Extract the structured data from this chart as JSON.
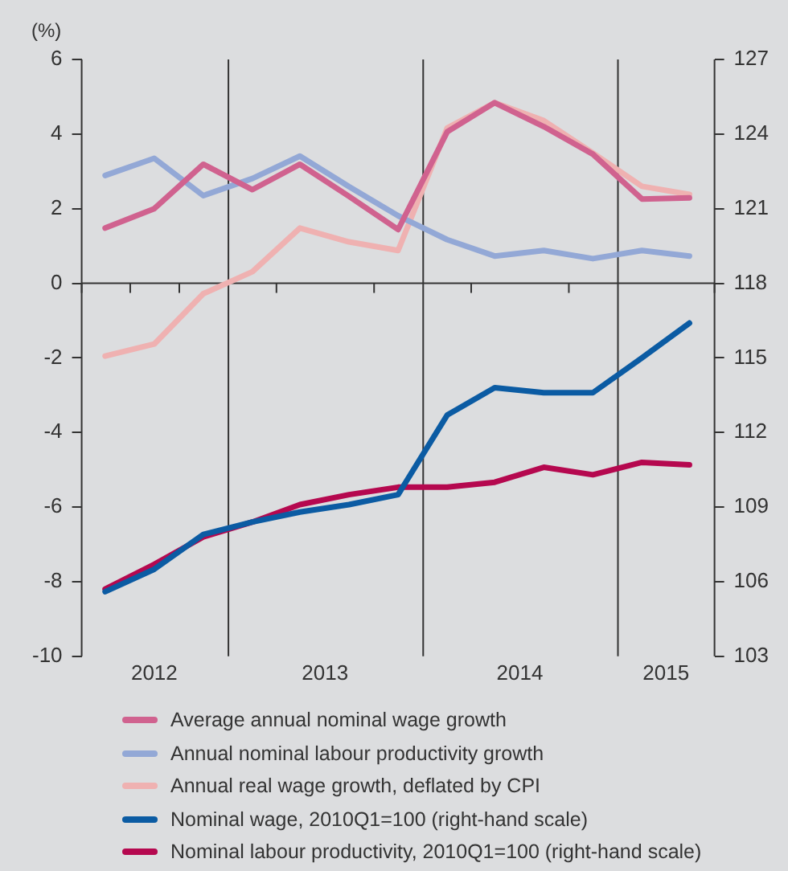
{
  "chart_data": {
    "type": "line",
    "ylabel": "(%)",
    "x": [
      "2012-05-15",
      "2012-08-15",
      "2012-11-15",
      "2013-02-15",
      "2013-05-15",
      "2013-08-15",
      "2013-11-15",
      "2014-02-15",
      "2014-05-15",
      "2014-08-15",
      "2014-11-15",
      "2015-02-15",
      "2015-05-15"
    ],
    "xlim": [
      "2012-04-01",
      "2015-07-01"
    ],
    "xticks": [
      {
        "value": "2012-04-01",
        "label": null
      },
      {
        "value": "2012-07-01",
        "label": null
      },
      {
        "value": "2012-08-15",
        "label": "2012"
      },
      {
        "value": "2012-10-01",
        "label": null
      },
      {
        "value": "2013-04-01",
        "label": null
      },
      {
        "value": "2013-07-01",
        "label": "2013"
      },
      {
        "value": "2013-10-01",
        "label": null
      },
      {
        "value": "2014-04-01",
        "label": null
      },
      {
        "value": "2014-07-01",
        "label": "2014"
      },
      {
        "value": "2014-10-01",
        "label": null
      },
      {
        "value": "2015-04-01",
        "label": "2015"
      },
      {
        "value": "2015-07-01",
        "label": null
      }
    ],
    "ylim": [
      -10,
      6
    ],
    "yticks": [
      -10,
      -8,
      -6,
      -4,
      -2,
      0,
      2,
      4,
      6
    ],
    "y2lim": [
      103,
      127
    ],
    "y2ticks": [
      103,
      106,
      109,
      112,
      115,
      118,
      121,
      124,
      127
    ],
    "series": [
      {
        "name": "Average annual nominal wage growth",
        "color": "#d0628f",
        "values": [
          1.48,
          2.0,
          3.19,
          2.51,
          3.19,
          2.33,
          1.44,
          4.06,
          4.84,
          4.2,
          3.46,
          2.26,
          2.29
        ]
      },
      {
        "name": "Annual nominal labour productivity growth",
        "color": "#93a8d6",
        "values": [
          2.89,
          3.35,
          2.35,
          2.81,
          3.41,
          2.59,
          1.81,
          1.17,
          0.73,
          0.88,
          0.66,
          0.88,
          0.73
        ]
      },
      {
        "name": "Annual real wage growth, deflated by CPI",
        "color": "#efb1b1",
        "values": [
          -1.95,
          -1.63,
          -0.28,
          0.31,
          1.48,
          1.11,
          0.88,
          4.16,
          4.84,
          4.36,
          3.49,
          2.6,
          2.38
        ]
      },
      {
        "name": "Nominal wage, 2010Q1=100 (right-hand scale)",
        "color": "#0b5ba3",
        "axis": "y2",
        "values": [
          105.6,
          106.5,
          107.9,
          108.4,
          108.8,
          109.1,
          109.5,
          112.7,
          113.8,
          113.6,
          113.6,
          115.0,
          116.4
        ]
      },
      {
        "name": "Nominal labour productivity, 2010Q1=100 (right-hand scale)",
        "color": "#b5084f",
        "axis": "y2",
        "values": [
          105.7,
          106.7,
          107.8,
          108.4,
          109.1,
          109.5,
          109.8,
          109.8,
          110.0,
          110.6,
          110.3,
          110.8,
          110.7
        ]
      }
    ],
    "ref_lines": [
      {
        "axis": "x",
        "value": "2013-01-01",
        "color": "#333333"
      },
      {
        "axis": "x",
        "value": "2014-01-01",
        "color": "#333333"
      },
      {
        "axis": "x",
        "value": "2015-01-01",
        "color": "#333333"
      },
      {
        "axis": "y",
        "value": 0,
        "color": "#333333"
      }
    ],
    "grid": false,
    "legend": "bottom",
    "marker": "none",
    "line_style": "solid"
  }
}
